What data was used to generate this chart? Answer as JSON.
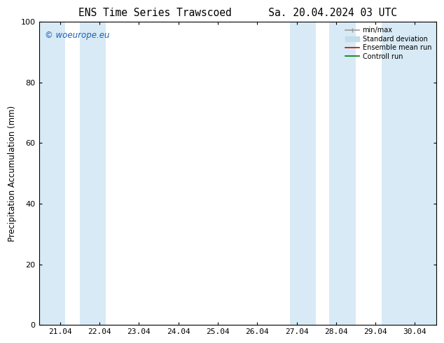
{
  "title": "ENS Time Series Trawscoed      Sa. 20.04.2024 03 UTC",
  "ylabel": "Precipitation Accumulation (mm)",
  "ylim": [
    0,
    100
  ],
  "xlim": [
    20.5,
    30.58
  ],
  "xticks": [
    21.04,
    22.04,
    23.04,
    24.04,
    25.04,
    26.04,
    27.04,
    28.04,
    29.04,
    30.04
  ],
  "xtick_labels": [
    "21.04",
    "22.04",
    "23.04",
    "24.04",
    "25.04",
    "26.04",
    "27.04",
    "28.04",
    "29.04",
    "30.04"
  ],
  "yticks": [
    0,
    20,
    40,
    60,
    80,
    100
  ],
  "shaded_bands": [
    {
      "xmin": 20.5,
      "xmax": 21.16
    },
    {
      "xmin": 21.54,
      "xmax": 22.2
    },
    {
      "xmin": 26.87,
      "xmax": 27.53
    },
    {
      "xmin": 27.87,
      "xmax": 28.53
    },
    {
      "xmin": 29.2,
      "xmax": 30.58
    }
  ],
  "band_color": "#d8eaf5",
  "bg_color": "#ffffff",
  "watermark_text": "© woeurope.eu",
  "watermark_color": "#1a5fb4",
  "legend_items": [
    {
      "label": "min/max",
      "color": "#999999",
      "lw": 1.2,
      "style": "solid",
      "type": "errorbar"
    },
    {
      "label": "Standard deviation",
      "color": "#c5dcea",
      "lw": 5,
      "style": "solid",
      "type": "band"
    },
    {
      "label": "Ensemble mean run",
      "color": "#cc0000",
      "lw": 1.2,
      "style": "solid",
      "type": "line"
    },
    {
      "label": "Controll run",
      "color": "#007700",
      "lw": 1.2,
      "style": "solid",
      "type": "line"
    }
  ],
  "title_fontsize": 10.5,
  "tick_fontsize": 8,
  "ylabel_fontsize": 8.5
}
